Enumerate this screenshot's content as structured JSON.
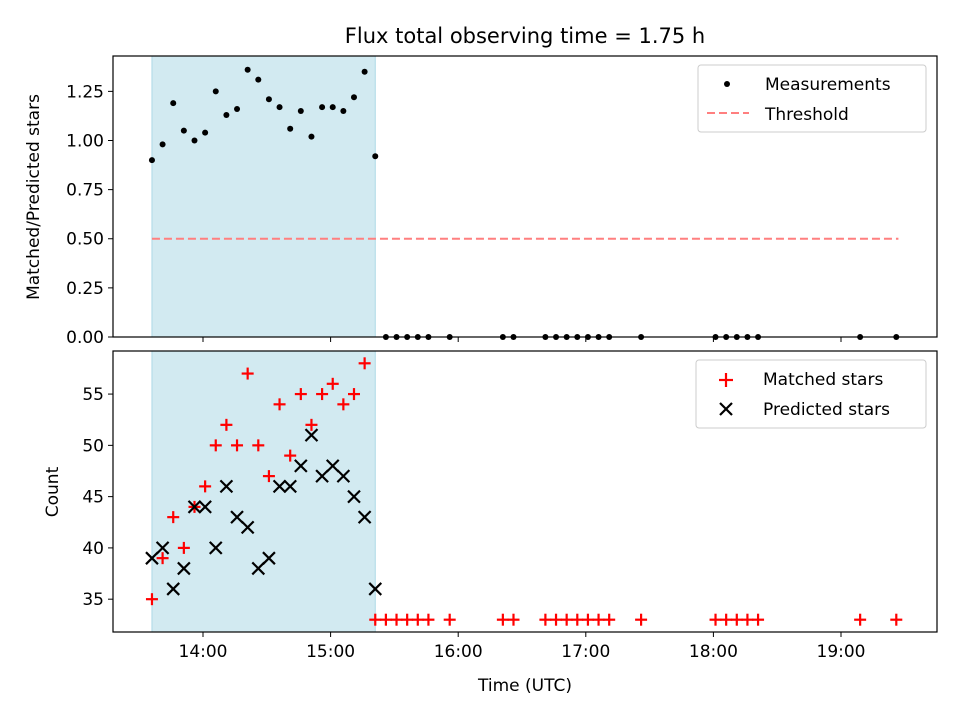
{
  "title": "Flux total observing time = 1.75 h",
  "colors": {
    "shade": "#add8e6",
    "measurement": "#000000",
    "threshold": "#ff7f7f",
    "matched": "#ff0000",
    "predicted": "#000000"
  },
  "chart_data": [
    {
      "type": "scatter",
      "ylabel": "Matched/Predicted stars",
      "ylim": [
        0,
        1.43
      ],
      "yticks": [
        "0.00",
        "0.25",
        "0.50",
        "0.75",
        "1.00",
        "1.25"
      ],
      "legend_placement": "upper right",
      "shaded_interval": {
        "start": "13:36",
        "end": "15:21"
      },
      "threshold": {
        "name": "Threshold",
        "value": 0.5,
        "x_start": "13:36",
        "x_end": "19:27"
      },
      "series": [
        {
          "name": "Measurements",
          "x": [
            "13:36",
            "13:41",
            "13:46",
            "13:51",
            "13:56",
            "14:01",
            "14:06",
            "14:11",
            "14:16",
            "14:21",
            "14:26",
            "14:31",
            "14:36",
            "14:41",
            "14:46",
            "14:51",
            "14:56",
            "15:01",
            "15:06",
            "15:11",
            "15:16",
            "15:21",
            "15:26",
            "15:31",
            "15:36",
            "15:41",
            "15:46",
            "15:56",
            "16:21",
            "16:26",
            "16:41",
            "16:46",
            "16:51",
            "16:56",
            "17:01",
            "17:06",
            "17:11",
            "17:26",
            "18:01",
            "18:06",
            "18:11",
            "18:16",
            "18:21",
            "19:09",
            "19:26"
          ],
          "values": [
            0.9,
            0.98,
            1.19,
            1.05,
            1.0,
            1.04,
            1.25,
            1.13,
            1.16,
            1.36,
            1.31,
            1.21,
            1.17,
            1.06,
            1.15,
            1.02,
            1.17,
            1.17,
            1.15,
            1.22,
            1.35,
            0.92,
            0,
            0,
            0,
            0,
            0,
            0,
            0,
            0,
            0,
            0,
            0,
            0,
            0,
            0,
            0,
            0,
            0,
            0,
            0,
            0,
            0,
            0,
            0
          ]
        }
      ]
    },
    {
      "type": "scatter",
      "xlabel": "Time (UTC)",
      "ylabel": "Count",
      "ylim": [
        31.8,
        59.2
      ],
      "yticks": [
        "35",
        "40",
        "45",
        "50",
        "55"
      ],
      "xticks": [
        "14:00",
        "15:00",
        "16:00",
        "17:00",
        "18:00",
        "19:00"
      ],
      "legend_placement": "upper right",
      "shaded_interval": {
        "start": "13:36",
        "end": "15:21"
      },
      "series": [
        {
          "name": "Matched stars",
          "x": [
            "13:36",
            "13:41",
            "13:46",
            "13:51",
            "13:56",
            "14:01",
            "14:06",
            "14:11",
            "14:16",
            "14:21",
            "14:26",
            "14:31",
            "14:36",
            "14:41",
            "14:46",
            "14:51",
            "14:56",
            "15:01",
            "15:06",
            "15:11",
            "15:16",
            "15:21",
            "15:26",
            "15:31",
            "15:36",
            "15:41",
            "15:46",
            "15:56",
            "16:21",
            "16:26",
            "16:41",
            "16:46",
            "16:51",
            "16:56",
            "17:01",
            "17:06",
            "17:11",
            "17:26",
            "18:01",
            "18:06",
            "18:11",
            "18:16",
            "18:21",
            "19:09",
            "19:26"
          ],
          "values": [
            35,
            39,
            43,
            40,
            44,
            46,
            50,
            52,
            50,
            57,
            50,
            47,
            54,
            49,
            55,
            52,
            55,
            56,
            54,
            55,
            58,
            33,
            33,
            33,
            33,
            33,
            33,
            33,
            33,
            33,
            33,
            33,
            33,
            33,
            33,
            33,
            33,
            33,
            33,
            33,
            33,
            33,
            33,
            33,
            33
          ]
        },
        {
          "name": "Predicted stars",
          "x": [
            "13:36",
            "13:41",
            "13:46",
            "13:51",
            "13:56",
            "14:01",
            "14:06",
            "14:11",
            "14:16",
            "14:21",
            "14:26",
            "14:31",
            "14:36",
            "14:41",
            "14:46",
            "14:51",
            "14:56",
            "15:01",
            "15:06",
            "15:11",
            "15:16",
            "15:21"
          ],
          "values": [
            39,
            40,
            36,
            38,
            44,
            44,
            40,
            46,
            43,
            42,
            38,
            39,
            46,
            46,
            48,
            51,
            47,
            48,
            47,
            45,
            43,
            36
          ]
        }
      ]
    }
  ]
}
